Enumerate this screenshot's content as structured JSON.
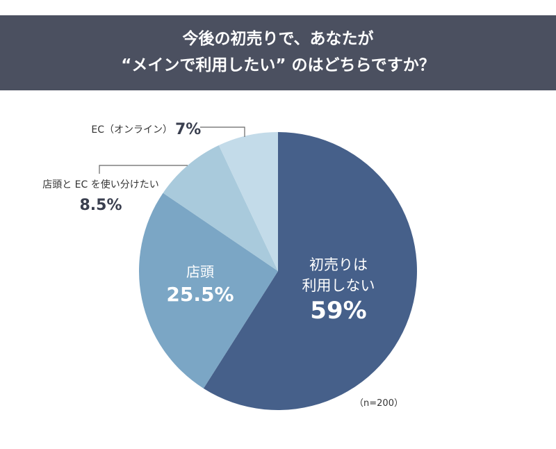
{
  "title_lines": [
    "今後の初売りで、あなたが",
    "“メインで利用したい” のはどちらですか？"
  ],
  "chart_data": {
    "type": "pie",
    "title": "今後の初売りで、あなたが “メインで利用したい” のはどちらですか？",
    "note": "（n=200）",
    "slices": [
      {
        "label_lines": [
          "初売りは",
          "利用しない"
        ],
        "value": 59,
        "value_label": "59%",
        "color": "#46608a"
      },
      {
        "label_lines": [
          "店頭"
        ],
        "value": 25.5,
        "value_label": "25.5%",
        "color": "#7ba6c5"
      },
      {
        "label_lines": [
          "店頭と EC を使い分けたい"
        ],
        "value": 8.5,
        "value_label": "8.5%",
        "color": "#a9cadc"
      },
      {
        "label_lines": [
          "EC（オンライン）"
        ],
        "value": 7,
        "value_label": "7%",
        "color": "#c3dbe9"
      }
    ]
  }
}
